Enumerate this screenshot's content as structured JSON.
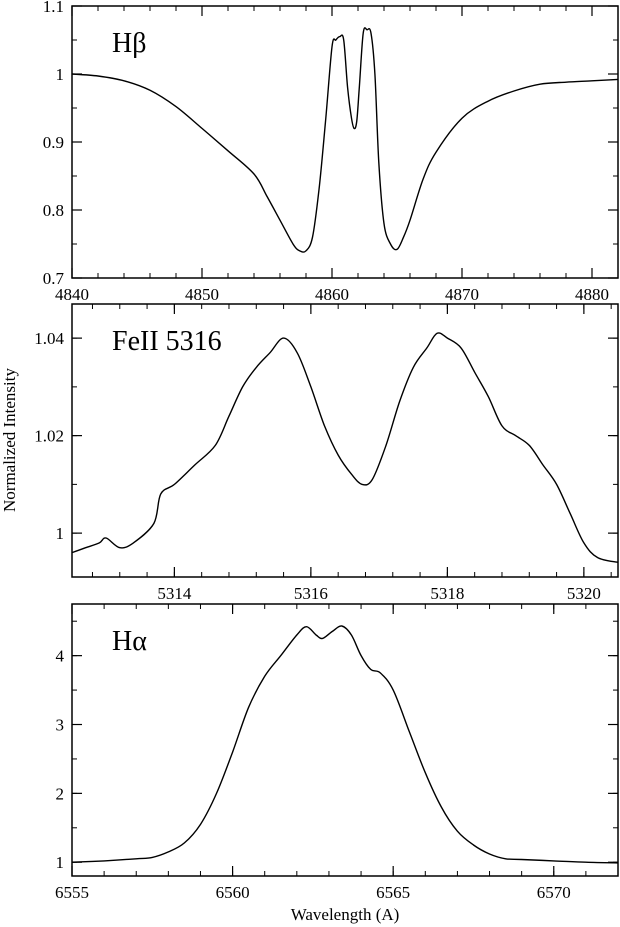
{
  "chart_data": [
    {
      "type": "line",
      "panel_label": "Hβ",
      "xlim": [
        4840,
        4882
      ],
      "ylim": [
        0.7,
        1.1
      ],
      "xticks": [
        4840,
        4850,
        4860,
        4870,
        4880
      ],
      "xtick_labels": [
        "4840",
        "4850",
        "4860",
        "4870",
        "4880"
      ],
      "yticks": [
        0.7,
        0.8,
        0.9,
        1.0,
        1.1
      ],
      "ytick_labels": [
        "0.7",
        "0.8",
        "0.9",
        "1",
        "1.1"
      ],
      "series": [
        {
          "x": [
            4840,
            4842,
            4844,
            4846,
            4848,
            4850,
            4852,
            4854,
            4855,
            4856,
            4857,
            4857.5,
            4858,
            4858.5,
            4859,
            4859.5,
            4860,
            4860.3,
            4860.6,
            4860.9,
            4861.2,
            4861.5,
            4861.7,
            4861.9,
            4862.1,
            4862.4,
            4862.7,
            4863,
            4863.3,
            4863.6,
            4864,
            4864.5,
            4865,
            4865.5,
            4866,
            4867,
            4868,
            4870,
            4872,
            4874,
            4876,
            4878,
            4880,
            4882
          ],
          "y": [
            1.0,
            0.997,
            0.99,
            0.976,
            0.952,
            0.92,
            0.887,
            0.853,
            0.82,
            0.785,
            0.75,
            0.74,
            0.74,
            0.76,
            0.83,
            0.93,
            1.04,
            1.05,
            1.055,
            1.05,
            0.98,
            0.935,
            0.92,
            0.93,
            0.98,
            1.06,
            1.065,
            1.06,
            1.0,
            0.87,
            0.78,
            0.75,
            0.742,
            0.76,
            0.785,
            0.845,
            0.885,
            0.935,
            0.96,
            0.975,
            0.985,
            0.988,
            0.99,
            0.992
          ]
        }
      ]
    },
    {
      "type": "line",
      "panel_label": "FeII 5316",
      "xlim": [
        5312.5,
        5320.5
      ],
      "ylim": [
        0.991,
        1.047
      ],
      "xticks": [
        5314,
        5316,
        5318,
        5320
      ],
      "xtick_labels": [
        "5314",
        "5316",
        "5318",
        "5320"
      ],
      "yticks": [
        1.0,
        1.02,
        1.04
      ],
      "ytick_labels": [
        "1",
        "1.02",
        "1.04"
      ],
      "series": [
        {
          "x": [
            5312.5,
            5312.7,
            5312.9,
            5313.0,
            5313.2,
            5313.4,
            5313.7,
            5313.8,
            5314.0,
            5314.3,
            5314.6,
            5314.8,
            5315.0,
            5315.2,
            5315.4,
            5315.6,
            5315.8,
            5316.0,
            5316.2,
            5316.4,
            5316.6,
            5316.75,
            5316.9,
            5317.1,
            5317.3,
            5317.5,
            5317.7,
            5317.85,
            5318.0,
            5318.2,
            5318.4,
            5318.6,
            5318.8,
            5319.0,
            5319.2,
            5319.4,
            5319.6,
            5319.8,
            5320.0,
            5320.2,
            5320.5
          ],
          "y": [
            0.996,
            0.997,
            0.998,
            0.999,
            0.997,
            0.998,
            1.002,
            1.008,
            1.01,
            1.014,
            1.018,
            1.024,
            1.03,
            1.034,
            1.037,
            1.04,
            1.037,
            1.03,
            1.022,
            1.016,
            1.012,
            1.01,
            1.011,
            1.018,
            1.027,
            1.034,
            1.038,
            1.041,
            1.04,
            1.038,
            1.033,
            1.028,
            1.022,
            1.02,
            1.018,
            1.014,
            1.01,
            1.004,
            0.998,
            0.995,
            0.994
          ]
        }
      ]
    },
    {
      "type": "line",
      "panel_label": "Hα",
      "xlim": [
        6555,
        6572
      ],
      "ylim": [
        0.8,
        4.75
      ],
      "xticks": [
        6555,
        6560,
        6565,
        6570
      ],
      "xtick_labels": [
        "6555",
        "6560",
        "6565",
        "6570"
      ],
      "yticks": [
        1,
        2,
        3,
        4
      ],
      "ytick_labels": [
        "1",
        "2",
        "3",
        "4"
      ],
      "xlabel": "Wavelength (A)",
      "series": [
        {
          "x": [
            6555,
            6556,
            6557,
            6557.5,
            6558,
            6558.5,
            6559,
            6559.5,
            6560,
            6560.5,
            6561,
            6561.5,
            6562,
            6562.3,
            6562.6,
            6562.8,
            6563.1,
            6563.4,
            6563.7,
            6564,
            6564.3,
            6564.6,
            6565,
            6565.5,
            6566,
            6566.5,
            6567,
            6567.5,
            6568,
            6568.5,
            6569,
            6570,
            6571,
            6572
          ],
          "y": [
            1.0,
            1.02,
            1.05,
            1.07,
            1.15,
            1.28,
            1.55,
            2.0,
            2.6,
            3.25,
            3.7,
            4.0,
            4.3,
            4.42,
            4.3,
            4.25,
            4.35,
            4.43,
            4.3,
            4.0,
            3.8,
            3.75,
            3.5,
            2.9,
            2.3,
            1.8,
            1.45,
            1.25,
            1.12,
            1.05,
            1.04,
            1.02,
            1.0,
            0.99
          ]
        }
      ]
    }
  ],
  "ylabel": "Normalized Intensity"
}
